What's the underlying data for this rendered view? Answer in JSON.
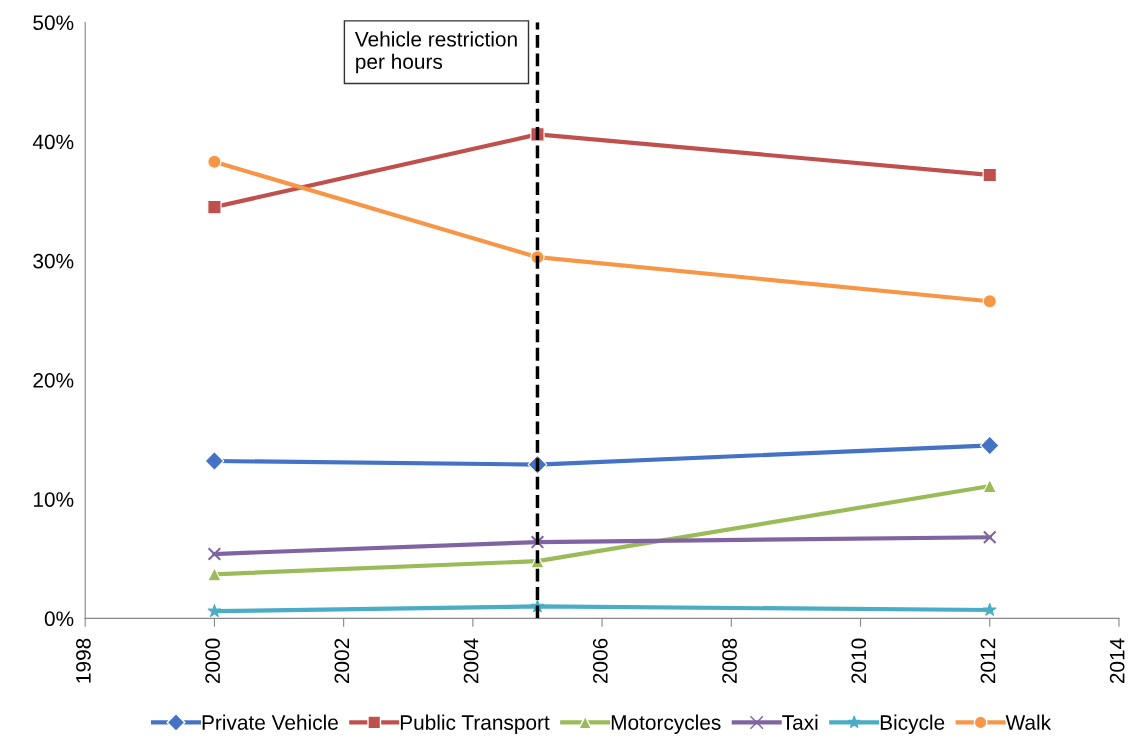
{
  "chart_data": {
    "type": "line",
    "x": [
      2000,
      2005,
      2012
    ],
    "series": [
      {
        "name": "Private Vehicle",
        "color": "#4472c4",
        "marker": "diamond",
        "values": [
          13.2,
          12.9,
          14.5
        ]
      },
      {
        "name": "Public Transport",
        "color": "#c0504d",
        "marker": "square",
        "values": [
          34.5,
          40.6,
          37.2
        ]
      },
      {
        "name": "Motorcycles",
        "color": "#9bbb59",
        "marker": "triangle",
        "values": [
          3.7,
          4.8,
          11.1
        ]
      },
      {
        "name": "Taxi",
        "color": "#8064a2",
        "marker": "cross",
        "values": [
          5.4,
          6.4,
          6.8
        ]
      },
      {
        "name": "Bicycle",
        "color": "#4bacc6",
        "marker": "star",
        "values": [
          0.6,
          1.0,
          0.7
        ]
      },
      {
        "name": "Walk",
        "color": "#f79646",
        "marker": "circle",
        "values": [
          38.3,
          30.3,
          26.6
        ]
      }
    ],
    "xlim": [
      1998,
      2014
    ],
    "xticks": [
      1998,
      2000,
      2002,
      2004,
      2006,
      2008,
      2010,
      2012,
      2014
    ],
    "ylim": [
      0,
      50
    ],
    "yticks": [
      {
        "value": 0,
        "label": "0%"
      },
      {
        "value": 10,
        "label": "10%"
      },
      {
        "value": 20,
        "label": "20%"
      },
      {
        "value": 30,
        "label": "30%"
      },
      {
        "value": 40,
        "label": "40%"
      },
      {
        "value": 50,
        "label": "50%"
      }
    ],
    "ref_lines": [
      {
        "axis": "x",
        "value": 2005,
        "label": "Vehicle restriction\nper hours",
        "color": "#000000",
        "line_style": "dashed"
      }
    ],
    "grid": false,
    "legend": "bottom",
    "line_style": "solid"
  }
}
